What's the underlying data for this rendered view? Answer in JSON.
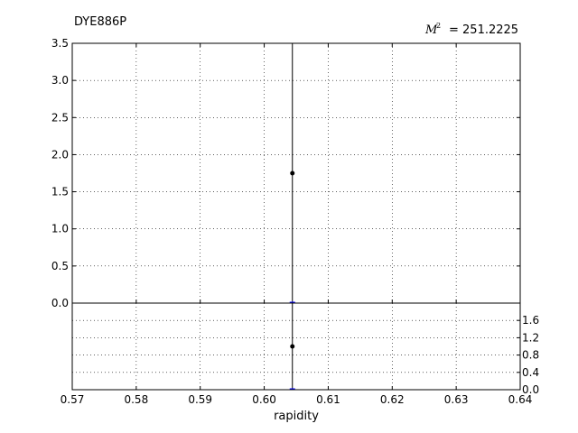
{
  "chart_data": [
    {
      "type": "scatter",
      "title": "DYE886P",
      "annotation": {
        "symbol": "M",
        "superscript": "2",
        "value_text": "= 251.2225"
      },
      "xlabel": "rapidity",
      "ylabel": "",
      "xlim": [
        0.57,
        0.64
      ],
      "ylim": [
        0.0,
        3.5
      ],
      "xticks": [
        0.57,
        0.58,
        0.59,
        0.6,
        0.61,
        0.62,
        0.63,
        0.64
      ],
      "xtick_labels": [
        "0.57",
        "0.58",
        "0.59",
        "0.60",
        "0.61",
        "0.62",
        "0.63",
        "0.64"
      ],
      "yticks": [
        0.0,
        0.5,
        1.0,
        1.5,
        2.0,
        2.5,
        3.0,
        3.5
      ],
      "ytick_labels": [
        "0.0",
        "0.5",
        "1.0",
        "1.5",
        "2.0",
        "2.5",
        "3.0",
        "3.5"
      ],
      "grid": true,
      "series": [
        {
          "points": [
            {
              "x": 0.6044,
              "y": 1.75
            }
          ],
          "error_bars": [
            {
              "x": 0.6044,
              "low": 0.0,
              "high": 3.5
            }
          ],
          "color": "#000000"
        },
        {
          "points": [
            {
              "x": 0.6044,
              "y": 0.0
            }
          ],
          "color": "#0000ff"
        }
      ]
    },
    {
      "type": "scatter",
      "xlim": [
        0.57,
        0.64
      ],
      "ylim": [
        0.0,
        2.0
      ],
      "yticks": [
        0.0,
        0.4,
        0.8,
        1.2,
        1.6
      ],
      "ytick_labels": [
        "0.0",
        "0.4",
        "0.8",
        "1.2",
        "1.6"
      ],
      "ytick_position": "right",
      "grid": true,
      "series": [
        {
          "points": [
            {
              "x": 0.6044,
              "y": 1.0
            }
          ],
          "error_bars": [
            {
              "x": 0.6044,
              "low": 0.0,
              "high": 2.0
            }
          ],
          "color": "#000000"
        },
        {
          "points": [
            {
              "x": 0.6044,
              "y": 0.0
            }
          ],
          "color": "#0000ff"
        }
      ]
    }
  ]
}
